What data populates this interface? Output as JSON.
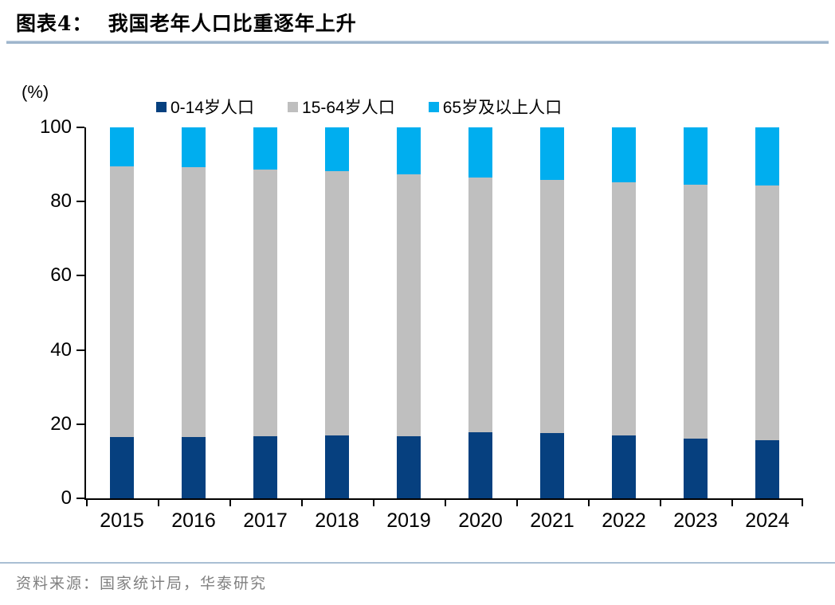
{
  "header": {
    "title": "图表4：  我国老年人口比重逐年上升"
  },
  "footer": {
    "source": "资料来源：国家统计局，华泰研究"
  },
  "colors": {
    "series_navy": "#06407f",
    "series_gray": "#bfbfbf",
    "series_cyan": "#00aeef",
    "title_underline": "#9fb6cd",
    "source_divider": "#a9bfd4",
    "axis": "#000000",
    "source_text": "#808080"
  },
  "chart_data": {
    "type": "bar",
    "stacked": true,
    "title": "我国老年人口比重逐年上升",
    "unit_label": "(%)",
    "categories": [
      "2015",
      "2016",
      "2017",
      "2018",
      "2019",
      "2020",
      "2021",
      "2022",
      "2023",
      "2024"
    ],
    "series": [
      {
        "name": "0-14岁人口",
        "color": "#06407f",
        "values": [
          16.5,
          16.6,
          16.8,
          16.9,
          16.8,
          17.9,
          17.5,
          16.9,
          16.1,
          15.7
        ]
      },
      {
        "name": "15-64岁人口",
        "color": "#bfbfbf",
        "values": [
          73.0,
          72.6,
          71.8,
          71.2,
          70.6,
          68.6,
          68.3,
          68.2,
          68.5,
          68.7
        ]
      },
      {
        "name": "65岁及以上人口",
        "color": "#00aeef",
        "values": [
          10.5,
          10.8,
          11.4,
          11.9,
          12.6,
          13.5,
          14.2,
          14.9,
          15.4,
          15.6
        ]
      }
    ],
    "xlabel": "",
    "ylabel": "(%)",
    "ylim": [
      0,
      100
    ],
    "yticks": [
      0,
      20,
      40,
      60,
      80,
      100
    ],
    "legend_position": "top",
    "grid": false
  }
}
